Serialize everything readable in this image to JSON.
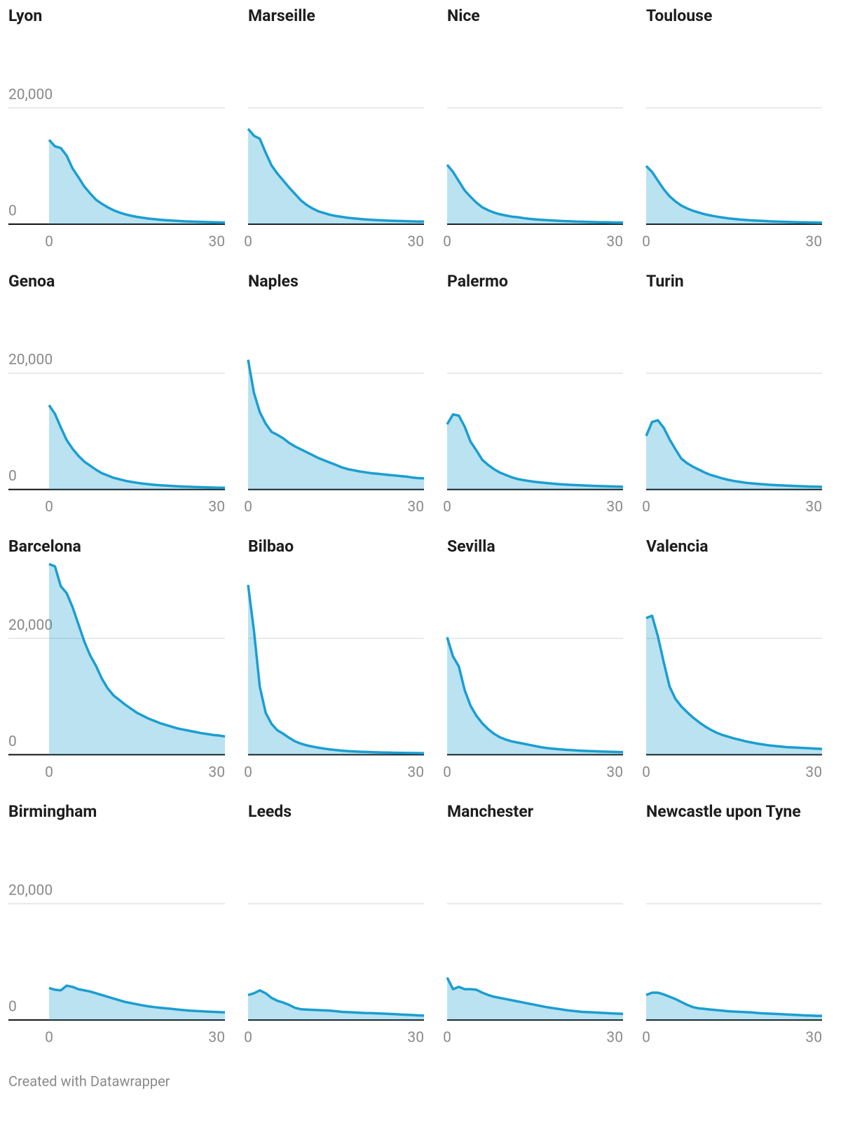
{
  "chart_data": [
    {
      "type": "area",
      "title": "Lyon",
      "color": "#1b9ed0",
      "xlim": [
        0,
        30
      ],
      "xticks": [
        0,
        30
      ],
      "ylim": [
        0,
        33000
      ],
      "yticks": [
        0,
        {
          "value": 20000,
          "label": "20,000"
        }
      ],
      "x": [
        0,
        1,
        2,
        3,
        4,
        5,
        6,
        7,
        8,
        9,
        10,
        11,
        12,
        13,
        14,
        15,
        16,
        17,
        18,
        19,
        20,
        21,
        22,
        23,
        24,
        25,
        26,
        27,
        28,
        29,
        30
      ],
      "values": [
        14500,
        13400,
        13100,
        11800,
        9600,
        8100,
        6500,
        5300,
        4200,
        3500,
        2900,
        2400,
        2000,
        1700,
        1450,
        1250,
        1100,
        950,
        850,
        750,
        680,
        610,
        550,
        500,
        460,
        420,
        390,
        360,
        330,
        300,
        280
      ]
    },
    {
      "type": "area",
      "title": "Marseille",
      "color": "#1b9ed0",
      "xlim": [
        0,
        30
      ],
      "xticks": [
        0,
        30
      ],
      "ylim": [
        0,
        33000
      ],
      "yticks": [
        0,
        20000
      ],
      "x": [
        0,
        1,
        2,
        3,
        4,
        5,
        6,
        7,
        8,
        9,
        10,
        11,
        12,
        13,
        14,
        15,
        16,
        17,
        18,
        19,
        20,
        21,
        22,
        23,
        24,
        25,
        26,
        27,
        28,
        29,
        30
      ],
      "values": [
        16400,
        15200,
        14700,
        12300,
        10100,
        8700,
        7500,
        6300,
        5200,
        4100,
        3300,
        2700,
        2200,
        1900,
        1600,
        1400,
        1250,
        1100,
        1000,
        900,
        820,
        750,
        700,
        650,
        600,
        570,
        540,
        510,
        480,
        460,
        440
      ]
    },
    {
      "type": "area",
      "title": "Nice",
      "color": "#1b9ed0",
      "xlim": [
        0,
        30
      ],
      "xticks": [
        0,
        30
      ],
      "ylim": [
        0,
        33000
      ],
      "yticks": [
        0,
        20000
      ],
      "x": [
        0,
        1,
        2,
        3,
        4,
        5,
        6,
        7,
        8,
        9,
        10,
        11,
        12,
        13,
        14,
        15,
        16,
        17,
        18,
        19,
        20,
        21,
        22,
        23,
        24,
        25,
        26,
        27,
        28,
        29,
        30
      ],
      "values": [
        10200,
        9000,
        7400,
        5800,
        4700,
        3700,
        2900,
        2400,
        2000,
        1700,
        1500,
        1300,
        1200,
        1050,
        920,
        830,
        760,
        700,
        640,
        580,
        530,
        490,
        450,
        420,
        390,
        360,
        340,
        320,
        300,
        280,
        270
      ]
    },
    {
      "type": "area",
      "title": "Toulouse",
      "color": "#1b9ed0",
      "xlim": [
        0,
        30
      ],
      "xticks": [
        0,
        30
      ],
      "ylim": [
        0,
        33000
      ],
      "yticks": [
        0,
        20000
      ],
      "x": [
        0,
        1,
        2,
        3,
        4,
        5,
        6,
        7,
        8,
        9,
        10,
        11,
        12,
        13,
        14,
        15,
        16,
        17,
        18,
        19,
        20,
        21,
        22,
        23,
        24,
        25,
        26,
        27,
        28,
        29,
        30
      ],
      "values": [
        10000,
        9000,
        7500,
        6000,
        4800,
        3900,
        3200,
        2700,
        2300,
        2000,
        1700,
        1500,
        1300,
        1150,
        1000,
        900,
        800,
        720,
        650,
        600,
        550,
        500,
        460,
        420,
        390,
        360,
        330,
        310,
        290,
        270,
        250
      ]
    },
    {
      "type": "area",
      "title": "Genoa",
      "color": "#1b9ed0",
      "xlim": [
        0,
        30
      ],
      "xticks": [
        0,
        30
      ],
      "ylim": [
        0,
        33000
      ],
      "yticks": [
        0,
        {
          "value": 20000,
          "label": "20,000"
        }
      ],
      "x": [
        0,
        1,
        2,
        3,
        4,
        5,
        6,
        7,
        8,
        9,
        10,
        11,
        12,
        13,
        14,
        15,
        16,
        17,
        18,
        19,
        20,
        21,
        22,
        23,
        24,
        25,
        26,
        27,
        28,
        29,
        30
      ],
      "values": [
        14500,
        13000,
        10700,
        8500,
        7000,
        5800,
        4800,
        4100,
        3400,
        2800,
        2400,
        2000,
        1750,
        1500,
        1300,
        1150,
        1000,
        900,
        800,
        720,
        650,
        590,
        540,
        500,
        460,
        420,
        390,
        360,
        330,
        300,
        280
      ]
    },
    {
      "type": "area",
      "title": "Naples",
      "color": "#1b9ed0",
      "xlim": [
        0,
        30
      ],
      "xticks": [
        0,
        30
      ],
      "ylim": [
        0,
        33000
      ],
      "yticks": [
        0,
        20000
      ],
      "x": [
        0,
        1,
        2,
        3,
        4,
        5,
        6,
        7,
        8,
        9,
        10,
        11,
        12,
        13,
        14,
        15,
        16,
        17,
        18,
        19,
        20,
        21,
        22,
        23,
        24,
        25,
        26,
        27,
        28,
        29,
        30
      ],
      "values": [
        22300,
        16600,
        13300,
        11300,
        9900,
        9400,
        8800,
        8000,
        7400,
        6900,
        6400,
        5900,
        5400,
        5000,
        4600,
        4200,
        3800,
        3500,
        3300,
        3100,
        2950,
        2800,
        2700,
        2600,
        2500,
        2400,
        2300,
        2200,
        2050,
        1950,
        1900
      ]
    },
    {
      "type": "area",
      "title": "Palermo",
      "color": "#1b9ed0",
      "xlim": [
        0,
        30
      ],
      "xticks": [
        0,
        30
      ],
      "ylim": [
        0,
        33000
      ],
      "yticks": [
        0,
        20000
      ],
      "x": [
        0,
        1,
        2,
        3,
        4,
        5,
        6,
        7,
        8,
        9,
        10,
        11,
        12,
        13,
        14,
        15,
        16,
        17,
        18,
        19,
        20,
        21,
        22,
        23,
        24,
        25,
        26,
        27,
        28,
        29,
        30
      ],
      "values": [
        11200,
        12900,
        12700,
        10800,
        8200,
        6700,
        5100,
        4200,
        3500,
        2900,
        2500,
        2100,
        1800,
        1600,
        1450,
        1300,
        1200,
        1100,
        1000,
        920,
        850,
        800,
        750,
        700,
        660,
        620,
        580,
        550,
        520,
        490,
        460
      ]
    },
    {
      "type": "area",
      "title": "Turin",
      "color": "#1b9ed0",
      "xlim": [
        0,
        30
      ],
      "xticks": [
        0,
        30
      ],
      "ylim": [
        0,
        33000
      ],
      "yticks": [
        0,
        20000
      ],
      "x": [
        0,
        1,
        2,
        3,
        4,
        5,
        6,
        7,
        8,
        9,
        10,
        11,
        12,
        13,
        14,
        15,
        16,
        17,
        18,
        19,
        20,
        21,
        22,
        23,
        24,
        25,
        26,
        27,
        28,
        29,
        30
      ],
      "values": [
        9200,
        11600,
        11900,
        10600,
        8600,
        6900,
        5300,
        4500,
        3900,
        3400,
        2900,
        2500,
        2200,
        1900,
        1650,
        1450,
        1300,
        1150,
        1050,
        950,
        880,
        810,
        750,
        700,
        650,
        610,
        570,
        530,
        500,
        470,
        440
      ]
    },
    {
      "type": "area",
      "title": "Barcelona",
      "color": "#1b9ed0",
      "xlim": [
        0,
        30
      ],
      "xticks": [
        0,
        30
      ],
      "ylim": [
        0,
        33000
      ],
      "yticks": [
        0,
        {
          "value": 20000,
          "label": "20,000"
        }
      ],
      "x": [
        0,
        1,
        2,
        3,
        4,
        5,
        6,
        7,
        8,
        9,
        10,
        11,
        12,
        13,
        14,
        15,
        16,
        17,
        18,
        19,
        20,
        21,
        22,
        23,
        24,
        25,
        26,
        27,
        28,
        29,
        30
      ],
      "values": [
        32800,
        32400,
        29000,
        27800,
        25400,
        22500,
        19500,
        17100,
        15300,
        13100,
        11400,
        10200,
        9400,
        8600,
        7900,
        7200,
        6700,
        6200,
        5800,
        5400,
        5100,
        4800,
        4500,
        4300,
        4100,
        3900,
        3700,
        3550,
        3400,
        3300,
        3150
      ]
    },
    {
      "type": "area",
      "title": "Bilbao",
      "color": "#1b9ed0",
      "xlim": [
        0,
        30
      ],
      "xticks": [
        0,
        30
      ],
      "ylim": [
        0,
        33000
      ],
      "yticks": [
        0,
        20000
      ],
      "x": [
        0,
        1,
        2,
        3,
        4,
        5,
        6,
        7,
        8,
        9,
        10,
        11,
        12,
        13,
        14,
        15,
        16,
        17,
        18,
        19,
        20,
        21,
        22,
        23,
        24,
        25,
        26,
        27,
        28,
        29,
        30
      ],
      "values": [
        29200,
        21300,
        11700,
        7200,
        5300,
        4200,
        3600,
        2900,
        2300,
        1900,
        1600,
        1400,
        1200,
        1050,
        900,
        800,
        700,
        620,
        570,
        520,
        480,
        440,
        410,
        380,
        360,
        340,
        320,
        300,
        290,
        280,
        270
      ]
    },
    {
      "type": "area",
      "title": "Sevilla",
      "color": "#1b9ed0",
      "xlim": [
        0,
        30
      ],
      "xticks": [
        0,
        30
      ],
      "ylim": [
        0,
        33000
      ],
      "yticks": [
        0,
        20000
      ],
      "x": [
        0,
        1,
        2,
        3,
        4,
        5,
        6,
        7,
        8,
        9,
        10,
        11,
        12,
        13,
        14,
        15,
        16,
        17,
        18,
        19,
        20,
        21,
        22,
        23,
        24,
        25,
        26,
        27,
        28,
        29,
        30
      ],
      "values": [
        20200,
        16900,
        15200,
        11100,
        8400,
        6700,
        5400,
        4400,
        3600,
        3000,
        2600,
        2300,
        2100,
        1900,
        1700,
        1500,
        1300,
        1150,
        1050,
        950,
        870,
        800,
        740,
        690,
        640,
        600,
        560,
        530,
        500,
        470,
        450
      ]
    },
    {
      "type": "area",
      "title": "Valencia",
      "color": "#1b9ed0",
      "xlim": [
        0,
        30
      ],
      "xticks": [
        0,
        30
      ],
      "ylim": [
        0,
        33000
      ],
      "yticks": [
        0,
        20000
      ],
      "x": [
        0,
        1,
        2,
        3,
        4,
        5,
        6,
        7,
        8,
        9,
        10,
        11,
        12,
        13,
        14,
        15,
        16,
        17,
        18,
        19,
        20,
        21,
        22,
        23,
        24,
        25,
        26,
        27,
        28,
        29,
        30
      ],
      "values": [
        23500,
        23900,
        20400,
        15900,
        11700,
        9600,
        8300,
        7300,
        6400,
        5600,
        4900,
        4300,
        3800,
        3400,
        3100,
        2800,
        2550,
        2300,
        2100,
        1900,
        1750,
        1600,
        1500,
        1400,
        1300,
        1250,
        1200,
        1150,
        1100,
        1050,
        1000
      ]
    },
    {
      "type": "area",
      "title": "Birmingham",
      "color": "#1b9ed0",
      "xlim": [
        0,
        30
      ],
      "xticks": [
        0,
        30
      ],
      "ylim": [
        0,
        33000
      ],
      "yticks": [
        0,
        {
          "value": 20000,
          "label": "20,000"
        }
      ],
      "x": [
        0,
        1,
        2,
        3,
        4,
        5,
        6,
        7,
        8,
        9,
        10,
        11,
        12,
        13,
        14,
        15,
        16,
        17,
        18,
        19,
        20,
        21,
        22,
        23,
        24,
        25,
        26,
        27,
        28,
        29,
        30
      ],
      "values": [
        5500,
        5200,
        5100,
        5900,
        5700,
        5300,
        5100,
        4900,
        4600,
        4300,
        4000,
        3700,
        3400,
        3100,
        2900,
        2700,
        2500,
        2350,
        2200,
        2100,
        2000,
        1900,
        1800,
        1700,
        1600,
        1550,
        1500,
        1450,
        1400,
        1350,
        1300
      ]
    },
    {
      "type": "area",
      "title": "Leeds",
      "color": "#1b9ed0",
      "xlim": [
        0,
        30
      ],
      "xticks": [
        0,
        30
      ],
      "ylim": [
        0,
        33000
      ],
      "yticks": [
        0,
        20000
      ],
      "x": [
        0,
        1,
        2,
        3,
        4,
        5,
        6,
        7,
        8,
        9,
        10,
        11,
        12,
        13,
        14,
        15,
        16,
        17,
        18,
        19,
        20,
        21,
        22,
        23,
        24,
        25,
        26,
        27,
        28,
        29,
        30
      ],
      "values": [
        4300,
        4600,
        5100,
        4600,
        3800,
        3300,
        3000,
        2600,
        2100,
        1850,
        1800,
        1750,
        1700,
        1650,
        1600,
        1500,
        1400,
        1350,
        1300,
        1250,
        1200,
        1180,
        1150,
        1100,
        1050,
        1000,
        950,
        900,
        850,
        800,
        750
      ]
    },
    {
      "type": "area",
      "title": "Manchester",
      "color": "#1b9ed0",
      "xlim": [
        0,
        30
      ],
      "xticks": [
        0,
        30
      ],
      "ylim": [
        0,
        33000
      ],
      "yticks": [
        0,
        20000
      ],
      "x": [
        0,
        1,
        2,
        3,
        4,
        5,
        6,
        7,
        8,
        9,
        10,
        11,
        12,
        13,
        14,
        15,
        16,
        17,
        18,
        19,
        20,
        21,
        22,
        23,
        24,
        25,
        26,
        27,
        28,
        29,
        30
      ],
      "values": [
        7300,
        5300,
        5700,
        5300,
        5300,
        5200,
        4700,
        4300,
        4000,
        3800,
        3600,
        3400,
        3200,
        3000,
        2800,
        2600,
        2400,
        2200,
        2050,
        1900,
        1750,
        1600,
        1500,
        1400,
        1350,
        1300,
        1250,
        1200,
        1150,
        1100,
        1050
      ]
    },
    {
      "type": "area",
      "title": "Newcastle upon Tyne",
      "color": "#1b9ed0",
      "xlim": [
        0,
        30
      ],
      "xticks": [
        0,
        30
      ],
      "ylim": [
        0,
        33000
      ],
      "yticks": [
        0,
        20000
      ],
      "x": [
        0,
        1,
        2,
        3,
        4,
        5,
        6,
        7,
        8,
        9,
        10,
        11,
        12,
        13,
        14,
        15,
        16,
        17,
        18,
        19,
        20,
        21,
        22,
        23,
        24,
        25,
        26,
        27,
        28,
        29,
        30
      ],
      "values": [
        4300,
        4700,
        4700,
        4400,
        4000,
        3600,
        3100,
        2600,
        2200,
        2000,
        1900,
        1800,
        1700,
        1600,
        1500,
        1450,
        1400,
        1350,
        1300,
        1200,
        1150,
        1100,
        1050,
        1000,
        950,
        900,
        850,
        800,
        760,
        720,
        700
      ]
    }
  ],
  "footer": "Created with Datawrapper"
}
